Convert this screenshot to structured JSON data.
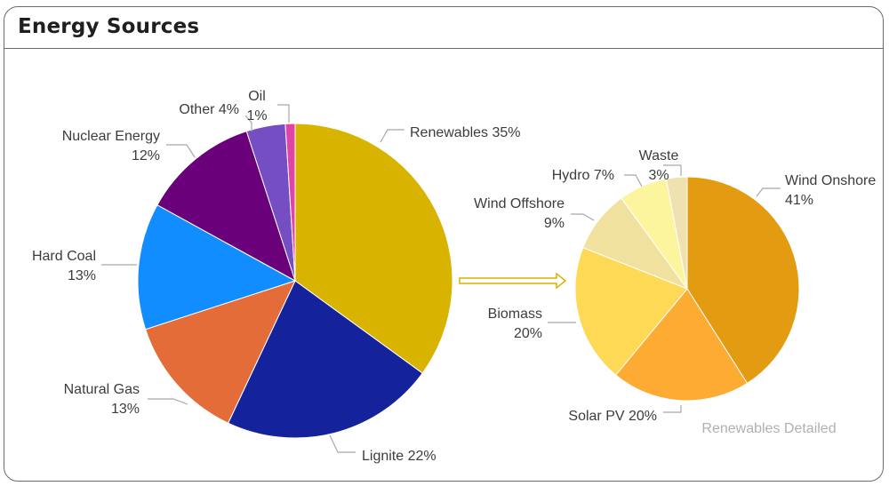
{
  "card": {
    "title": "Energy Sources"
  },
  "chart_data": [
    {
      "type": "pie",
      "title": "Energy Sources",
      "slices": [
        {
          "name": "Renewables",
          "value": 35,
          "label": "Renewables 35%",
          "color": "#d8b400"
        },
        {
          "name": "Lignite",
          "value": 22,
          "label": "Lignite 22%",
          "color": "#14229c"
        },
        {
          "name": "Natural Gas",
          "value": 13,
          "label": "Natural Gas\n13%",
          "color": "#e36c38"
        },
        {
          "name": "Hard Coal",
          "value": 13,
          "label": "Hard Coal\n13%",
          "color": "#118dff"
        },
        {
          "name": "Nuclear Energy",
          "value": 12,
          "label": "Nuclear Energy\n12%",
          "color": "#6b007b"
        },
        {
          "name": "Other",
          "value": 4,
          "label": "Other 4%",
          "color": "#744ec2"
        },
        {
          "name": "Oil",
          "value": 1,
          "label": "Oil\n1%",
          "color": "#e044a7"
        }
      ]
    },
    {
      "type": "pie",
      "title": "Renewables Detailed",
      "slices": [
        {
          "name": "Wind Onshore",
          "value": 41,
          "label": "Wind Onshore\n41%",
          "color": "#e39c12"
        },
        {
          "name": "Solar PV",
          "value": 20,
          "label": "Solar PV 20%",
          "color": "#fdab33"
        },
        {
          "name": "Biomass",
          "value": 20,
          "label": "Biomass\n20%",
          "color": "#fdd955"
        },
        {
          "name": "Wind Offshore",
          "value": 9,
          "label": "Wind Offshore\n9%",
          "color": "#f1e19e"
        },
        {
          "name": "Hydro",
          "value": 7,
          "label": "Hydro 7%",
          "color": "#fdf59e"
        },
        {
          "name": "Waste",
          "value": 3,
          "label": "Waste\n3%",
          "color": "#f0e2b0"
        }
      ]
    }
  ],
  "connector": {
    "color": "#d8b400"
  }
}
